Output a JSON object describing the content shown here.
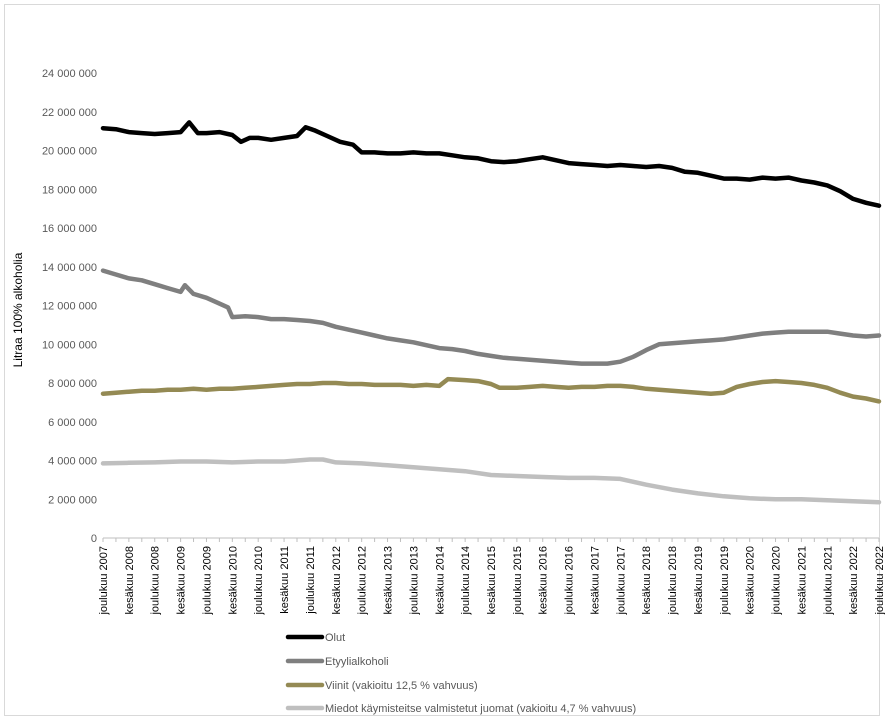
{
  "chart_data": {
    "type": "line",
    "title": "",
    "xlabel": "",
    "ylabel": "Litraa 100% alkoholia",
    "ylim": [
      0,
      24000000
    ],
    "y_ticks": [
      0,
      2000000,
      4000000,
      6000000,
      8000000,
      10000000,
      12000000,
      14000000,
      16000000,
      18000000,
      20000000,
      22000000,
      24000000
    ],
    "y_tick_labels": [
      "0",
      "2 000 000",
      "4 000 000",
      "6 000 000",
      "8 000 000",
      "10 000 000",
      "12 000 000",
      "14 000 000",
      "16 000 000",
      "18 000 000",
      "20 000 000",
      "22 000 000",
      "24 000 000"
    ],
    "x_start": "2007-12",
    "x_end": "2022-12",
    "x_tick_labels": [
      "joulukuu 2007",
      "kesäkuu 2008",
      "joulukuu 2008",
      "kesäkuu 2009",
      "joulukuu 2009",
      "kesäkuu 2010",
      "joulukuu 2010",
      "kesäkuu 2011",
      "joulukuu 2011",
      "kesäkuu 2012",
      "joulukuu 2012",
      "kesäkuu 2013",
      "joulukuu 2013",
      "kesäkuu 2014",
      "joulukuu 2014",
      "kesäkuu 2015",
      "joulukuu 2015",
      "kesäkuu 2016",
      "joulukuu 2016",
      "kesäkuu 2017",
      "joulukuu 2017",
      "kesäkuu 2018",
      "joulukuu 2018",
      "kesäkuu 2019",
      "joulukuu 2019",
      "kesäkuu 2020",
      "joulukuu 2020",
      "kesäkuu 2021",
      "joulukuu 2021",
      "kesäkuu 2022",
      "joulukuu 2022"
    ],
    "grid": false,
    "legend_position": "bottom",
    "series": [
      {
        "name": "Olut",
        "color": "#000000",
        "points": [
          [
            "2007-12",
            21150000
          ],
          [
            "2008-03",
            21100000
          ],
          [
            "2008-06",
            20950000
          ],
          [
            "2008-09",
            20900000
          ],
          [
            "2008-12",
            20850000
          ],
          [
            "2009-03",
            20900000
          ],
          [
            "2009-06",
            20950000
          ],
          [
            "2009-08",
            21450000
          ],
          [
            "2009-10",
            20900000
          ],
          [
            "2009-12",
            20900000
          ],
          [
            "2010-03",
            20950000
          ],
          [
            "2010-06",
            20800000
          ],
          [
            "2010-08",
            20450000
          ],
          [
            "2010-10",
            20650000
          ],
          [
            "2010-12",
            20650000
          ],
          [
            "2011-03",
            20550000
          ],
          [
            "2011-06",
            20650000
          ],
          [
            "2011-09",
            20750000
          ],
          [
            "2011-11",
            21200000
          ],
          [
            "2012-01",
            21050000
          ],
          [
            "2012-04",
            20750000
          ],
          [
            "2012-07",
            20450000
          ],
          [
            "2012-10",
            20300000
          ],
          [
            "2012-12",
            19900000
          ],
          [
            "2013-03",
            19900000
          ],
          [
            "2013-06",
            19850000
          ],
          [
            "2013-09",
            19850000
          ],
          [
            "2013-12",
            19900000
          ],
          [
            "2014-03",
            19850000
          ],
          [
            "2014-06",
            19850000
          ],
          [
            "2014-09",
            19750000
          ],
          [
            "2014-12",
            19650000
          ],
          [
            "2015-03",
            19600000
          ],
          [
            "2015-06",
            19450000
          ],
          [
            "2015-09",
            19400000
          ],
          [
            "2015-12",
            19450000
          ],
          [
            "2016-03",
            19550000
          ],
          [
            "2016-06",
            19650000
          ],
          [
            "2016-09",
            19500000
          ],
          [
            "2016-12",
            19350000
          ],
          [
            "2017-03",
            19300000
          ],
          [
            "2017-06",
            19250000
          ],
          [
            "2017-09",
            19200000
          ],
          [
            "2017-12",
            19250000
          ],
          [
            "2018-03",
            19200000
          ],
          [
            "2018-06",
            19150000
          ],
          [
            "2018-09",
            19200000
          ],
          [
            "2018-12",
            19100000
          ],
          [
            "2019-03",
            18900000
          ],
          [
            "2019-06",
            18850000
          ],
          [
            "2019-09",
            18700000
          ],
          [
            "2019-12",
            18550000
          ],
          [
            "2020-03",
            18550000
          ],
          [
            "2020-06",
            18500000
          ],
          [
            "2020-09",
            18600000
          ],
          [
            "2020-12",
            18550000
          ],
          [
            "2021-03",
            18600000
          ],
          [
            "2021-06",
            18450000
          ],
          [
            "2021-09",
            18350000
          ],
          [
            "2021-12",
            18200000
          ],
          [
            "2022-03",
            17900000
          ],
          [
            "2022-06",
            17500000
          ],
          [
            "2022-09",
            17300000
          ],
          [
            "2022-12",
            17150000
          ]
        ]
      },
      {
        "name": "Etyylialkoholi",
        "color": "#7f7f7f",
        "points": [
          [
            "2007-12",
            13800000
          ],
          [
            "2008-03",
            13600000
          ],
          [
            "2008-06",
            13400000
          ],
          [
            "2008-09",
            13300000
          ],
          [
            "2008-12",
            13100000
          ],
          [
            "2009-03",
            12900000
          ],
          [
            "2009-06",
            12700000
          ],
          [
            "2009-07",
            13050000
          ],
          [
            "2009-09",
            12600000
          ],
          [
            "2009-12",
            12400000
          ],
          [
            "2010-03",
            12100000
          ],
          [
            "2010-05",
            11900000
          ],
          [
            "2010-06",
            11400000
          ],
          [
            "2010-09",
            11450000
          ],
          [
            "2010-12",
            11400000
          ],
          [
            "2011-03",
            11300000
          ],
          [
            "2011-06",
            11300000
          ],
          [
            "2011-09",
            11250000
          ],
          [
            "2011-12",
            11200000
          ],
          [
            "2012-03",
            11100000
          ],
          [
            "2012-06",
            10900000
          ],
          [
            "2012-09",
            10750000
          ],
          [
            "2012-12",
            10600000
          ],
          [
            "2013-03",
            10450000
          ],
          [
            "2013-06",
            10300000
          ],
          [
            "2013-09",
            10200000
          ],
          [
            "2013-12",
            10100000
          ],
          [
            "2014-03",
            9950000
          ],
          [
            "2014-06",
            9800000
          ],
          [
            "2014-09",
            9750000
          ],
          [
            "2014-12",
            9650000
          ],
          [
            "2015-03",
            9500000
          ],
          [
            "2015-06",
            9400000
          ],
          [
            "2015-09",
            9300000
          ],
          [
            "2015-12",
            9250000
          ],
          [
            "2016-03",
            9200000
          ],
          [
            "2016-06",
            9150000
          ],
          [
            "2016-09",
            9100000
          ],
          [
            "2016-12",
            9050000
          ],
          [
            "2017-03",
            9000000
          ],
          [
            "2017-06",
            9000000
          ],
          [
            "2017-09",
            9000000
          ],
          [
            "2017-12",
            9100000
          ],
          [
            "2018-03",
            9350000
          ],
          [
            "2018-06",
            9700000
          ],
          [
            "2018-09",
            10000000
          ],
          [
            "2018-12",
            10050000
          ],
          [
            "2019-03",
            10100000
          ],
          [
            "2019-06",
            10150000
          ],
          [
            "2019-09",
            10200000
          ],
          [
            "2019-12",
            10250000
          ],
          [
            "2020-03",
            10350000
          ],
          [
            "2020-06",
            10450000
          ],
          [
            "2020-09",
            10550000
          ],
          [
            "2020-12",
            10600000
          ],
          [
            "2021-03",
            10650000
          ],
          [
            "2021-06",
            10650000
          ],
          [
            "2021-09",
            10650000
          ],
          [
            "2021-12",
            10650000
          ],
          [
            "2022-03",
            10550000
          ],
          [
            "2022-06",
            10450000
          ],
          [
            "2022-09",
            10400000
          ],
          [
            "2022-12",
            10450000
          ]
        ]
      },
      {
        "name": "Viinit (vakioitu 12,5 % vahvuus)",
        "color": "#948a54",
        "points": [
          [
            "2007-12",
            7450000
          ],
          [
            "2008-03",
            7500000
          ],
          [
            "2008-06",
            7550000
          ],
          [
            "2008-09",
            7600000
          ],
          [
            "2008-12",
            7600000
          ],
          [
            "2009-03",
            7650000
          ],
          [
            "2009-06",
            7650000
          ],
          [
            "2009-09",
            7700000
          ],
          [
            "2009-12",
            7650000
          ],
          [
            "2010-03",
            7700000
          ],
          [
            "2010-06",
            7700000
          ],
          [
            "2010-09",
            7750000
          ],
          [
            "2010-12",
            7800000
          ],
          [
            "2011-03",
            7850000
          ],
          [
            "2011-06",
            7900000
          ],
          [
            "2011-09",
            7950000
          ],
          [
            "2011-12",
            7950000
          ],
          [
            "2012-03",
            8000000
          ],
          [
            "2012-06",
            8000000
          ],
          [
            "2012-09",
            7950000
          ],
          [
            "2012-12",
            7950000
          ],
          [
            "2013-03",
            7900000
          ],
          [
            "2013-06",
            7900000
          ],
          [
            "2013-09",
            7900000
          ],
          [
            "2013-12",
            7850000
          ],
          [
            "2014-03",
            7900000
          ],
          [
            "2014-06",
            7850000
          ],
          [
            "2014-08",
            8200000
          ],
          [
            "2014-12",
            8150000
          ],
          [
            "2015-03",
            8100000
          ],
          [
            "2015-06",
            7950000
          ],
          [
            "2015-08",
            7750000
          ],
          [
            "2015-12",
            7750000
          ],
          [
            "2016-03",
            7800000
          ],
          [
            "2016-06",
            7850000
          ],
          [
            "2016-09",
            7800000
          ],
          [
            "2016-12",
            7750000
          ],
          [
            "2017-03",
            7800000
          ],
          [
            "2017-06",
            7800000
          ],
          [
            "2017-09",
            7850000
          ],
          [
            "2017-12",
            7850000
          ],
          [
            "2018-03",
            7800000
          ],
          [
            "2018-06",
            7700000
          ],
          [
            "2018-09",
            7650000
          ],
          [
            "2018-12",
            7600000
          ],
          [
            "2019-03",
            7550000
          ],
          [
            "2019-06",
            7500000
          ],
          [
            "2019-09",
            7450000
          ],
          [
            "2019-12",
            7500000
          ],
          [
            "2020-03",
            7800000
          ],
          [
            "2020-06",
            7950000
          ],
          [
            "2020-09",
            8050000
          ],
          [
            "2020-12",
            8100000
          ],
          [
            "2021-03",
            8050000
          ],
          [
            "2021-06",
            8000000
          ],
          [
            "2021-09",
            7900000
          ],
          [
            "2021-12",
            7750000
          ],
          [
            "2022-03",
            7500000
          ],
          [
            "2022-06",
            7300000
          ],
          [
            "2022-09",
            7200000
          ],
          [
            "2022-12",
            7050000
          ]
        ]
      },
      {
        "name": "Miedot käymisteitse valmistetut juomat (vakioitu 4,7 % vahvuus)",
        "color": "#bfbfbf",
        "points": [
          [
            "2007-12",
            3850000
          ],
          [
            "2008-06",
            3880000
          ],
          [
            "2008-12",
            3900000
          ],
          [
            "2009-06",
            3950000
          ],
          [
            "2009-12",
            3950000
          ],
          [
            "2010-06",
            3900000
          ],
          [
            "2010-12",
            3950000
          ],
          [
            "2011-06",
            3950000
          ],
          [
            "2011-12",
            4050000
          ],
          [
            "2012-03",
            4050000
          ],
          [
            "2012-06",
            3900000
          ],
          [
            "2012-12",
            3850000
          ],
          [
            "2013-06",
            3750000
          ],
          [
            "2013-12",
            3650000
          ],
          [
            "2014-06",
            3550000
          ],
          [
            "2014-12",
            3450000
          ],
          [
            "2015-06",
            3250000
          ],
          [
            "2015-12",
            3200000
          ],
          [
            "2016-06",
            3150000
          ],
          [
            "2016-12",
            3100000
          ],
          [
            "2017-06",
            3100000
          ],
          [
            "2017-12",
            3050000
          ],
          [
            "2018-03",
            2900000
          ],
          [
            "2018-06",
            2750000
          ],
          [
            "2018-12",
            2500000
          ],
          [
            "2019-06",
            2300000
          ],
          [
            "2019-12",
            2150000
          ],
          [
            "2020-06",
            2050000
          ],
          [
            "2020-12",
            2000000
          ],
          [
            "2021-06",
            2000000
          ],
          [
            "2021-12",
            1950000
          ],
          [
            "2022-06",
            1900000
          ],
          [
            "2022-12",
            1850000
          ]
        ]
      }
    ]
  }
}
